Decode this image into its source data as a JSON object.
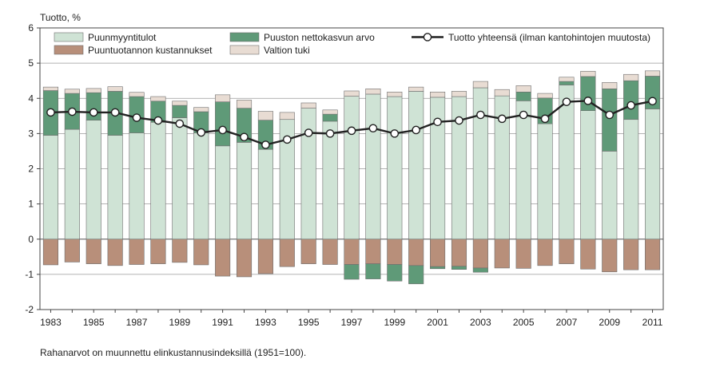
{
  "chart_data": {
    "type": "bar",
    "ylabel": "Tuotto, %",
    "ylim": [
      -2,
      6
    ],
    "yticks": [
      -2,
      -1,
      0,
      1,
      2,
      3,
      4,
      5,
      6
    ],
    "grid": true,
    "legend_position": "top",
    "note": "Rahanarvot on muunnettu elinkustannusindeksillä (1951=100).",
    "categories": [
      1983,
      1984,
      1985,
      1986,
      1987,
      1988,
      1989,
      1990,
      1991,
      1992,
      1993,
      1994,
      1995,
      1996,
      1997,
      1998,
      1999,
      2000,
      2001,
      2002,
      2003,
      2004,
      2005,
      2006,
      2007,
      2008,
      2009,
      2010,
      2011
    ],
    "xtick_labels": [
      "1983",
      "1985",
      "1987",
      "1989",
      "1991",
      "1993",
      "1995",
      "1997",
      "1999",
      "2001",
      "2003",
      "2005",
      "2007",
      "2009",
      "2011"
    ],
    "series": [
      {
        "name": "Puunmyyntitulot",
        "kind": "bar",
        "color": "#cfe3d5",
        "values": [
          2.95,
          3.12,
          3.38,
          2.95,
          3.02,
          3.32,
          3.45,
          3.02,
          2.65,
          2.75,
          2.55,
          3.4,
          3.72,
          3.35,
          4.06,
          4.12,
          4.05,
          4.2,
          4.03,
          4.05,
          4.3,
          4.07,
          3.93,
          3.28,
          4.38,
          3.65,
          2.5,
          3.4,
          3.7
        ]
      },
      {
        "name": "Puuston nettokasvun arvo",
        "kind": "bar",
        "color": "#5f9a78",
        "values": [
          1.27,
          1.02,
          0.78,
          1.25,
          1.03,
          0.6,
          0.35,
          0.6,
          1.25,
          0.97,
          0.83,
          0,
          0,
          0.2,
          -0.42,
          -0.43,
          -0.47,
          -0.52,
          -0.06,
          -0.09,
          -0.12,
          0,
          0.25,
          0.73,
          0.1,
          0.97,
          1.77,
          1.1,
          0.93
        ]
      },
      {
        "name": "Valtion tuki",
        "kind": "bar",
        "color": "#e8dcd3",
        "values": [
          0.1,
          0.12,
          0.12,
          0.13,
          0.12,
          0.13,
          0.12,
          0.12,
          0.2,
          0.23,
          0.25,
          0.2,
          0.15,
          0.12,
          0.15,
          0.15,
          0.13,
          0.12,
          0.15,
          0.15,
          0.18,
          0.18,
          0.18,
          0.13,
          0.12,
          0.15,
          0.18,
          0.18,
          0.15
        ]
      },
      {
        "name": "Puuntuotannon kustannukset",
        "kind": "bar",
        "color": "#b88f7a",
        "values": [
          -0.73,
          -0.65,
          -0.7,
          -0.75,
          -0.72,
          -0.7,
          -0.66,
          -0.73,
          -1.05,
          -1.07,
          -0.98,
          -0.78,
          -0.7,
          -0.72,
          -0.72,
          -0.7,
          -0.72,
          -0.75,
          -0.78,
          -0.77,
          -0.82,
          -0.82,
          -0.83,
          -0.75,
          -0.7,
          -0.85,
          -0.93,
          -0.87,
          -0.87
        ]
      },
      {
        "name": "Tuotto yhteensä (ilman kantohintojen muutosta)",
        "kind": "line",
        "color": "#222222",
        "values": [
          3.6,
          3.62,
          3.6,
          3.6,
          3.45,
          3.37,
          3.28,
          3.03,
          3.1,
          2.9,
          2.68,
          2.83,
          3.02,
          3.0,
          3.08,
          3.15,
          3.0,
          3.1,
          3.33,
          3.37,
          3.53,
          3.42,
          3.53,
          3.42,
          3.9,
          3.93,
          3.53,
          3.8,
          3.92
        ]
      }
    ]
  }
}
